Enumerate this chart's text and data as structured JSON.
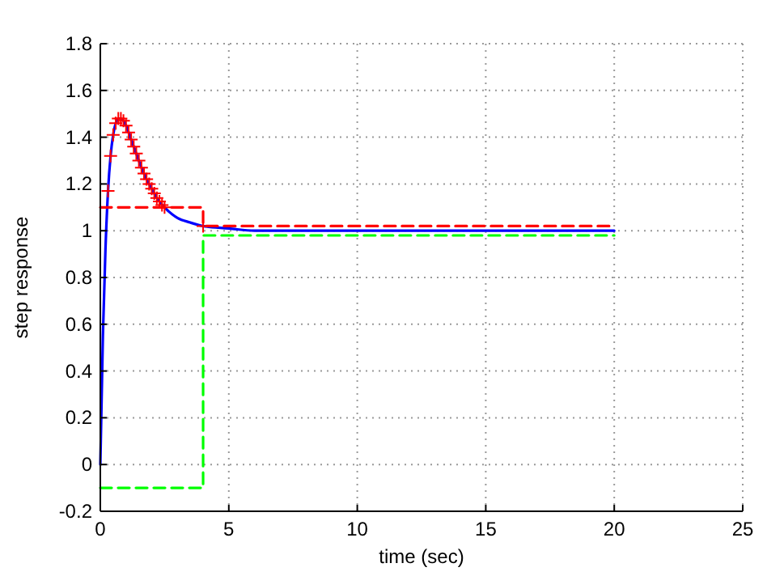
{
  "chart_data": {
    "type": "line",
    "xlabel": "time (sec)",
    "ylabel": "step response",
    "xlim": [
      0,
      25
    ],
    "xticks": [
      0,
      5,
      10,
      15,
      20,
      25
    ],
    "ylim": [
      -0.2,
      1.8
    ],
    "yticks": [
      -0.2,
      0,
      0.2,
      0.4,
      0.6,
      0.8,
      1,
      1.2,
      1.4,
      1.6,
      1.8
    ],
    "grid": true,
    "series": [
      {
        "color": "#0000ff",
        "line_style": "solid",
        "marker": "none",
        "x": [
          0,
          0.1,
          0.2,
          0.3,
          0.4,
          0.5,
          0.6,
          0.7,
          0.8,
          0.9,
          1.0,
          1.2,
          1.4,
          1.6,
          1.8,
          2.0,
          2.2,
          2.5,
          2.8,
          3.0,
          3.5,
          4.0,
          5.0,
          6.0,
          8.0,
          20.0
        ],
        "values": [
          0,
          0.55,
          0.92,
          1.17,
          1.32,
          1.41,
          1.46,
          1.48,
          1.48,
          1.47,
          1.45,
          1.39,
          1.33,
          1.27,
          1.22,
          1.18,
          1.14,
          1.1,
          1.07,
          1.055,
          1.035,
          1.02,
          1.01,
          1.0,
          1.0,
          1.0
        ]
      },
      {
        "type": "scatter",
        "color": "#ff0000",
        "marker": "cross",
        "x": [
          0.3,
          0.4,
          0.5,
          0.6,
          0.7,
          0.8,
          0.9,
          1.0,
          1.1,
          1.2,
          1.3,
          1.4,
          1.5,
          1.6,
          1.7,
          1.8,
          1.9,
          2.0,
          2.1,
          2.2,
          2.3,
          2.4,
          2.5,
          4.0
        ],
        "values": [
          1.17,
          1.32,
          1.41,
          1.46,
          1.48,
          1.48,
          1.47,
          1.45,
          1.42,
          1.39,
          1.36,
          1.33,
          1.3,
          1.27,
          1.245,
          1.22,
          1.2,
          1.18,
          1.16,
          1.14,
          1.125,
          1.11,
          1.1,
          1.02
        ]
      },
      {
        "color": "#ff0000",
        "line_style": "dashed",
        "marker": "none",
        "x": [
          0,
          4,
          4,
          20
        ],
        "values": [
          1.1,
          1.1,
          1.02,
          1.02
        ]
      },
      {
        "color": "#00ff00",
        "line_style": "dashed",
        "marker": "none",
        "x": [
          0,
          4,
          4,
          20
        ],
        "values": [
          -0.1,
          -0.1,
          0.98,
          0.98
        ]
      }
    ]
  }
}
